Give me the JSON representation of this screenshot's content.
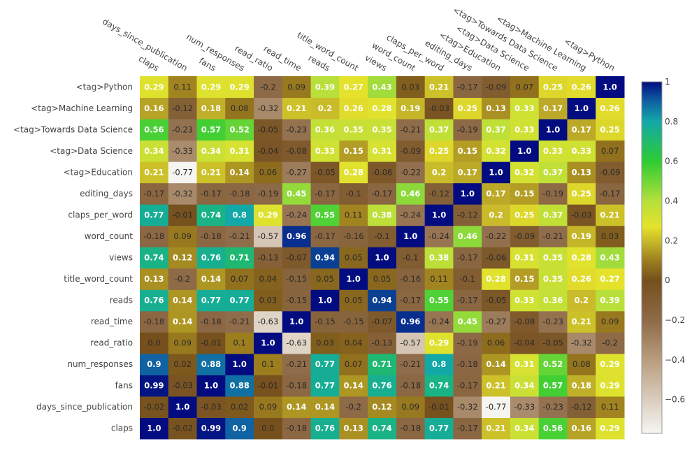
{
  "chart_data": {
    "type": "heatmap",
    "x_labels": [
      "claps",
      "days_since_publication",
      "fans",
      "num_responses",
      "read_ratio",
      "read_time",
      "reads",
      "title_word_count",
      "views",
      "word_count",
      "claps_per_word",
      "editing_days",
      "<tag>Education",
      "<tag>Data Science",
      "<tag>Towards Data Science",
      "<tag>Machine Learning",
      "<tag>Python"
    ],
    "y_labels": [
      "claps",
      "days_since_publication",
      "fans",
      "num_responses",
      "read_ratio",
      "read_time",
      "reads",
      "title_word_count",
      "views",
      "word_count",
      "claps_per_word",
      "editing_days",
      "<tag>Education",
      "<tag>Data Science",
      "<tag>Towards Data Science",
      "<tag>Machine Learning",
      "<tag>Python"
    ],
    "values": [
      [
        1.0,
        -0.02,
        0.99,
        0.9,
        0.0,
        -0.18,
        0.76,
        0.13,
        0.74,
        -0.18,
        0.77,
        -0.17,
        0.21,
        0.34,
        0.56,
        0.16,
        0.29
      ],
      [
        -0.02,
        1.0,
        -0.03,
        0.02,
        0.09,
        0.14,
        0.14,
        -0.2,
        0.12,
        0.09,
        -0.01,
        -0.32,
        -0.77,
        -0.33,
        -0.23,
        -0.12,
        0.11
      ],
      [
        0.99,
        -0.03,
        1.0,
        0.88,
        -0.01,
        -0.18,
        0.77,
        0.14,
        0.76,
        -0.18,
        0.74,
        -0.17,
        0.21,
        0.34,
        0.57,
        0.18,
        0.29
      ],
      [
        0.9,
        0.02,
        0.88,
        1.0,
        0.1,
        -0.21,
        0.77,
        0.07,
        0.71,
        -0.21,
        0.8,
        -0.18,
        0.14,
        0.31,
        0.52,
        0.08,
        0.29
      ],
      [
        0.0,
        0.09,
        -0.01,
        0.1,
        1.0,
        -0.63,
        0.03,
        0.04,
        -0.13,
        -0.57,
        0.29,
        -0.19,
        0.06,
        -0.04,
        -0.05,
        -0.32,
        -0.2
      ],
      [
        -0.18,
        0.14,
        -0.18,
        -0.21,
        -0.63,
        1.0,
        -0.15,
        -0.15,
        -0.07,
        0.96,
        -0.24,
        0.45,
        -0.27,
        -0.08,
        -0.23,
        0.21,
        0.09
      ],
      [
        0.76,
        0.14,
        0.77,
        0.77,
        0.03,
        -0.15,
        1.0,
        0.05,
        0.94,
        -0.17,
        0.55,
        -0.17,
        -0.05,
        0.33,
        0.36,
        0.2,
        0.39
      ],
      [
        0.13,
        -0.2,
        0.14,
        0.07,
        0.04,
        -0.15,
        0.05,
        1.0,
        0.05,
        -0.16,
        0.11,
        -0.1,
        0.28,
        0.15,
        0.35,
        0.26,
        0.27
      ],
      [
        0.74,
        0.12,
        0.76,
        0.71,
        -0.13,
        -0.07,
        0.94,
        0.05,
        1.0,
        -0.1,
        0.38,
        -0.17,
        -0.06,
        0.31,
        0.35,
        0.28,
        0.43
      ],
      [
        -0.18,
        0.09,
        -0.18,
        -0.21,
        -0.57,
        0.96,
        -0.17,
        -0.16,
        -0.1,
        1.0,
        -0.24,
        0.46,
        -0.22,
        -0.09,
        -0.21,
        0.19,
        0.03
      ],
      [
        0.77,
        -0.01,
        0.74,
        0.8,
        0.29,
        -0.24,
        0.55,
        0.11,
        0.38,
        -0.24,
        1.0,
        -0.12,
        0.2,
        0.25,
        0.37,
        -0.03,
        0.21
      ],
      [
        -0.17,
        -0.32,
        -0.17,
        -0.18,
        -0.19,
        0.45,
        -0.17,
        -0.1,
        -0.17,
        0.46,
        -0.12,
        1.0,
        0.17,
        0.15,
        -0.19,
        0.25,
        -0.17
      ],
      [
        0.21,
        -0.77,
        0.21,
        0.14,
        0.06,
        -0.27,
        -0.05,
        0.28,
        -0.06,
        -0.22,
        0.2,
        0.17,
        1.0,
        0.32,
        0.37,
        0.13,
        -0.09
      ],
      [
        0.34,
        -0.33,
        0.34,
        0.31,
        -0.04,
        -0.08,
        0.33,
        0.15,
        0.31,
        -0.09,
        0.25,
        0.15,
        0.32,
        1.0,
        0.33,
        0.33,
        0.07
      ],
      [
        0.56,
        -0.23,
        0.57,
        0.52,
        -0.05,
        -0.23,
        0.36,
        0.35,
        0.35,
        -0.21,
        0.37,
        -0.19,
        0.37,
        0.33,
        1.0,
        0.17,
        0.25
      ],
      [
        0.16,
        -0.12,
        0.18,
        0.08,
        -0.32,
        0.21,
        0.2,
        0.26,
        0.28,
        0.19,
        -0.03,
        0.25,
        0.13,
        0.33,
        0.17,
        1.0,
        0.26
      ],
      [
        0.29,
        0.11,
        0.29,
        0.29,
        -0.2,
        0.09,
        0.39,
        0.27,
        0.43,
        0.03,
        0.21,
        -0.17,
        -0.09,
        0.07,
        0.25,
        0.26,
        1.0
      ]
    ],
    "colorscale_range": [
      -0.77,
      1.0
    ],
    "colorbar_ticks": [
      "1",
      "0.8",
      "0.6",
      "0.4",
      "0.2",
      "0",
      "−0.2",
      "−0.4",
      "−0.6"
    ],
    "colorscale": [
      [
        -0.77,
        "#f6f5f2"
      ],
      [
        -0.4,
        "#b99d7f"
      ],
      [
        -0.2,
        "#8e6a47"
      ],
      [
        0.0,
        "#76501c"
      ],
      [
        0.1,
        "#9c7e1f"
      ],
      [
        0.2,
        "#c9bb2a"
      ],
      [
        0.27,
        "#e5e22c"
      ],
      [
        0.4,
        "#b5df3c"
      ],
      [
        0.6,
        "#2ecc33"
      ],
      [
        0.8,
        "#12a8a8"
      ],
      [
        0.9,
        "#1062a2"
      ],
      [
        1.0,
        "#020c80"
      ]
    ]
  }
}
